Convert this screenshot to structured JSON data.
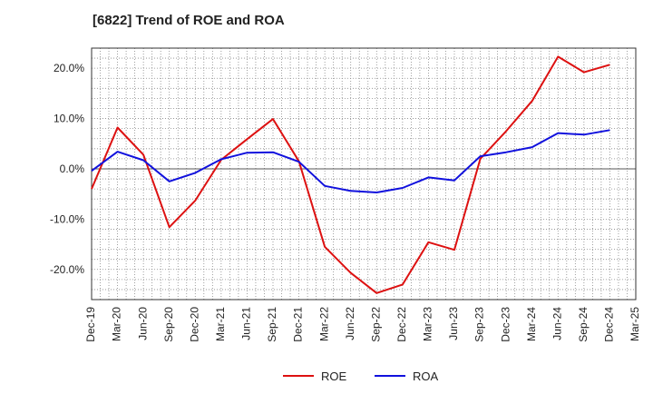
{
  "chart_data": {
    "type": "line",
    "title": "[6822]  Trend of ROE and ROA",
    "xlabel": "",
    "ylabel": "",
    "x": [
      "Dec-19",
      "Mar-20",
      "Jun-20",
      "Sep-20",
      "Dec-20",
      "Mar-21",
      "Jun-21",
      "Sep-21",
      "Dec-21",
      "Mar-22",
      "Jun-22",
      "Sep-22",
      "Dec-22",
      "Mar-23",
      "Jun-23",
      "Sep-23",
      "Dec-23",
      "Mar-24",
      "Jun-24",
      "Sep-24",
      "Dec-24",
      "Mar-25"
    ],
    "ylim": [
      -26.0,
      24.0
    ],
    "yticks": [
      -20,
      -10,
      0,
      10,
      20
    ],
    "ytick_labels": [
      "-20.0%",
      "-10.0%",
      "0.0%",
      "10.0%",
      "20.0%"
    ],
    "grid": true,
    "legend_position": "bottom",
    "series": [
      {
        "name": "ROE",
        "color": "#dd1111",
        "values": [
          -4.0,
          8.2,
          2.8,
          -11.6,
          -6.3,
          1.8,
          5.9,
          9.9,
          1.5,
          -15.5,
          -20.7,
          -24.7,
          -23.0,
          -14.6,
          -16.1,
          2.0,
          7.5,
          13.5,
          22.3,
          19.2,
          20.7,
          null
        ]
      },
      {
        "name": "ROA",
        "color": "#1111dd",
        "values": [
          -0.4,
          3.4,
          1.7,
          -2.5,
          -0.8,
          1.9,
          3.2,
          3.3,
          1.4,
          -3.4,
          -4.4,
          -4.7,
          -3.8,
          -1.7,
          -2.3,
          2.5,
          3.3,
          4.3,
          7.1,
          6.8,
          7.7,
          null
        ]
      }
    ]
  }
}
